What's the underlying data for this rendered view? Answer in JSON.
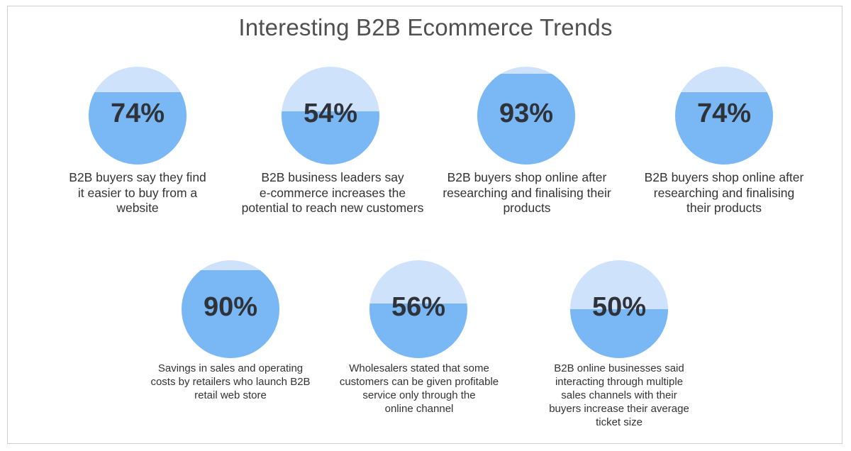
{
  "title": "Interesting B2B Ecommerce Trends",
  "colors": {
    "circle_fill": "#79b8f4",
    "circle_empty": "#cfe2fb",
    "percent_text": "#2f3238",
    "caption_text": "#333333",
    "title_text": "#505050"
  },
  "stats": [
    {
      "percent_label": "74%",
      "value": 74,
      "caption": "B2B buyers say they find\nit easier to buy from a\nwebsite"
    },
    {
      "percent_label": "54%",
      "value": 54,
      "caption": "B2B business leaders say\ne-commerce increases the\npotential to reach new customers"
    },
    {
      "percent_label": "93%",
      "value": 93,
      "caption": "B2B buyers shop online after\nresearching and finalising their\nproducts"
    },
    {
      "percent_label": "74%",
      "value": 74,
      "caption": "B2B buyers shop online after\nresearching and finalising\ntheir products"
    },
    {
      "percent_label": "90%",
      "value": 90,
      "caption": "Savings in sales and operating\ncosts by retailers who launch B2B\nretail web store"
    },
    {
      "percent_label": "56%",
      "value": 56,
      "caption": "Wholesalers stated that some\ncustomers can be given profitable\nservice only through the\nonline channel"
    },
    {
      "percent_label": "50%",
      "value": 50,
      "caption": "B2B online businesses said\ninteracting through multiple\nsales channels with their\nbuyers increase their average\nticket size"
    }
  ]
}
